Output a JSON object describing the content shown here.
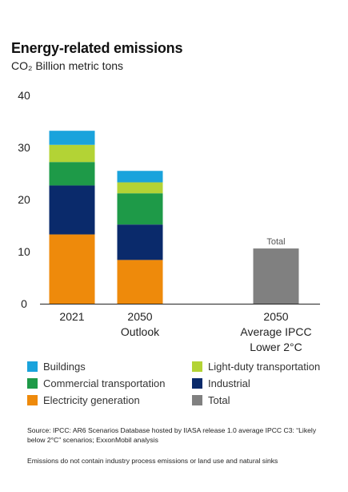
{
  "header": {
    "title": "Energy-related emissions",
    "subtitle": "CO₂ Billion metric tons"
  },
  "chart_data": {
    "type": "bar",
    "stacked": true,
    "ylim": [
      0,
      40
    ],
    "yticks": [
      0,
      10,
      20,
      30,
      40
    ],
    "grid": false,
    "legend_position": "bottom",
    "categories": [
      {
        "label": "2021",
        "sublabel": ""
      },
      {
        "label": "2050",
        "sublabel": "Outlook"
      },
      {
        "label": "2050",
        "sublabel": "Average IPCC Lower 2°C"
      }
    ],
    "series": [
      {
        "name": "Electricity generation",
        "color": "#EE8A0B",
        "values": [
          13.3,
          8.4,
          0
        ]
      },
      {
        "name": "Industrial",
        "color": "#0A2A6B",
        "values": [
          9.4,
          6.8,
          0
        ]
      },
      {
        "name": "Commercial transportation",
        "color": "#1E9A48",
        "values": [
          4.5,
          6.0,
          0
        ]
      },
      {
        "name": "Light-duty transportation",
        "color": "#B3D335",
        "values": [
          3.3,
          2.1,
          0
        ]
      },
      {
        "name": "Buildings",
        "color": "#1AA3DC",
        "values": [
          2.7,
          2.2,
          0
        ]
      },
      {
        "name": "Total",
        "color": "#808080",
        "values": [
          0,
          0,
          10.6
        ]
      }
    ],
    "annotations": [
      {
        "category_index": 2,
        "text": "Total"
      }
    ]
  },
  "legend": [
    {
      "label": "Buildings",
      "color": "#1AA3DC"
    },
    {
      "label": "Light-duty transportation",
      "color": "#B3D335"
    },
    {
      "label": "Commercial transportation",
      "color": "#1E9A48"
    },
    {
      "label": "Industrial",
      "color": "#0A2A6B"
    },
    {
      "label": "Electricity generation",
      "color": "#EE8A0B"
    },
    {
      "label": "Total",
      "color": "#808080"
    }
  ],
  "footer": {
    "source": "Source: IPCC: AR6 Scenarios Database hosted by IIASA release 1.0 average IPCC C3: “Likely below 2°C” scenarios; ExxonMobil analysis",
    "note": "Emissions do not contain industry process emissions or land use and natural sinks"
  }
}
